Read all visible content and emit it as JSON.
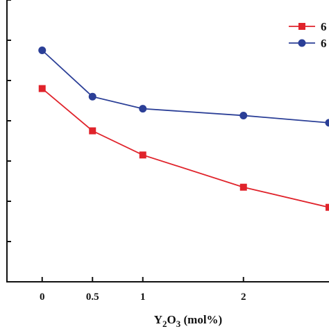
{
  "chart_data": {
    "type": "line",
    "xlabel": {
      "base1": "Y",
      "sub1": "2",
      "base2": "O",
      "sub2": "3",
      "rest": " (mol%)"
    },
    "ylabel": "",
    "categories": [
      "0",
      "0.5",
      "1",
      "2"
    ],
    "x": [
      0,
      0.5,
      1,
      2,
      2.85
    ],
    "xlim": [
      -0.35,
      2.85
    ],
    "ylim": [
      0,
      7
    ],
    "y_tick_count": 8,
    "grid": false,
    "legend_position": "top-right",
    "series": [
      {
        "name": "6",
        "color": "#e0232b",
        "marker": "square",
        "values": [
          4.8,
          3.75,
          3.15,
          2.35,
          1.85
        ]
      },
      {
        "name": "6",
        "color": "#2b3f97",
        "marker": "circle",
        "values": [
          5.75,
          4.6,
          4.3,
          4.13,
          3.95
        ]
      }
    ]
  }
}
